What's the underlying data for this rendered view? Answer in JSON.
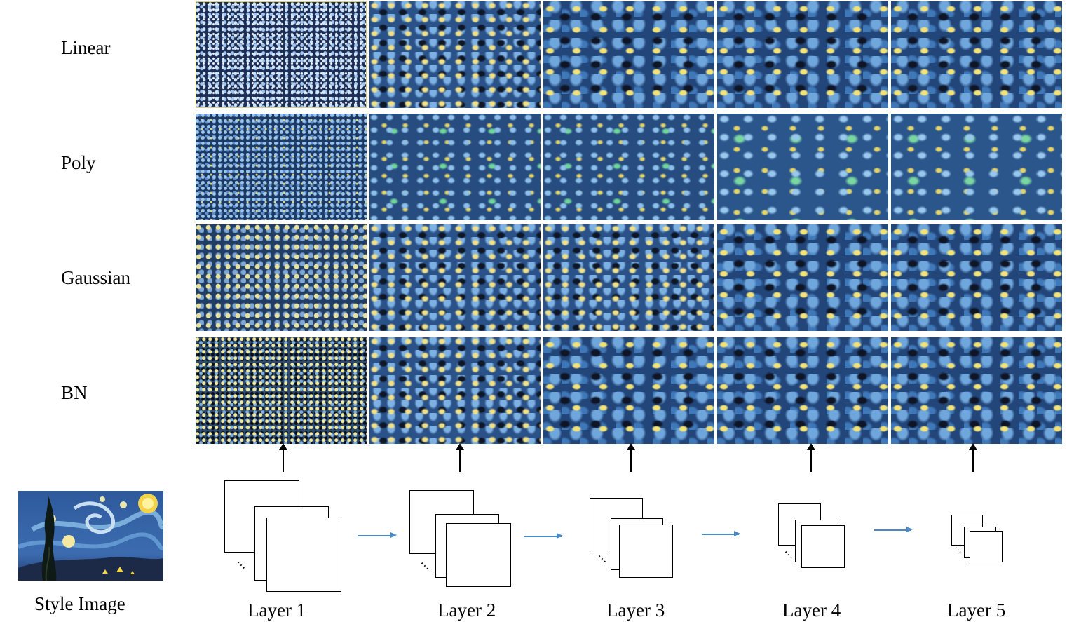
{
  "rows": [
    {
      "label": "Linear"
    },
    {
      "label": "Poly"
    },
    {
      "label": "Gaussian"
    },
    {
      "label": "BN"
    }
  ],
  "layers": [
    {
      "label": "Layer 1"
    },
    {
      "label": "Layer 2"
    },
    {
      "label": "Layer 3"
    },
    {
      "label": "Layer 4"
    },
    {
      "label": "Layer 5"
    }
  ],
  "style_image": {
    "caption": "Style Image"
  },
  "colors": {
    "arrow_blue": "#4a8ac8",
    "texture_blue": "#23467a",
    "texture_yellow": "#f2e27a"
  },
  "continuation_glyph": "⋯"
}
